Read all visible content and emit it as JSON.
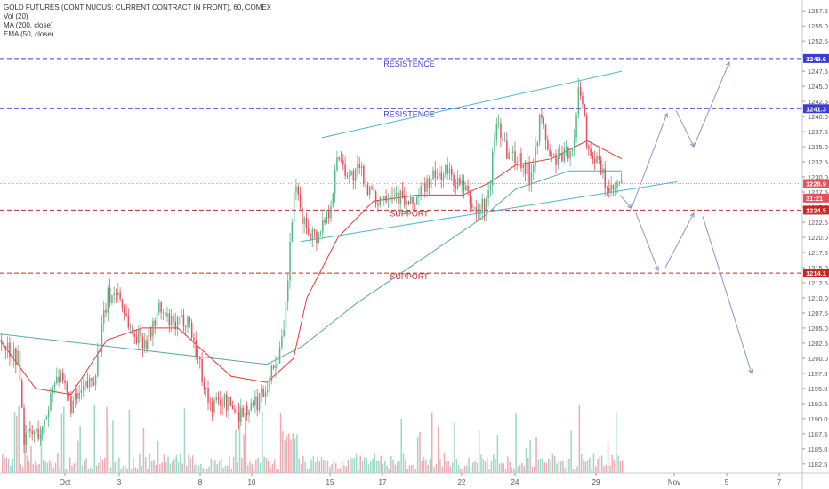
{
  "legend": {
    "title": "GOLD FUTURES (CONTINUOUS: CURRENT CONTRACT IN FRONT), 60, COMEX",
    "vol": "Vol (20)",
    "ma": "MA (200, close)",
    "ema": "EMA (50, close)"
  },
  "colors": {
    "up": "#53b987",
    "down": "#eb4d5c",
    "ma": "#5aa7a8",
    "ema": "#e53935",
    "resistance": "#3b3bd6",
    "support": "#c62828",
    "channel": "#4cb6c6",
    "projection": "#8c95c6",
    "vol_up": "#9ed6c8",
    "vol_down": "#f2a9b0"
  },
  "chart_data": {
    "type": "candlestick",
    "title": "GOLD FUTURES (CONTINUOUS: CURRENT CONTRACT IN FRONT), 60, COMEX",
    "ylim": [
      1181,
      1259
    ],
    "y_ticks": [
      "1257.5",
      "1255.0",
      "1252.5",
      "1250.0",
      "1247.5",
      "1245.0",
      "1242.5",
      "1240.0",
      "1237.5",
      "1235.0",
      "1232.5",
      "1230.0",
      "1227.5",
      "1225.0",
      "1222.5",
      "1220.0",
      "1217.5",
      "1215.0",
      "1212.5",
      "1210.0",
      "1207.5",
      "1205.0",
      "1202.5",
      "1200.0",
      "1197.5",
      "1195.0",
      "1192.5",
      "1190.0",
      "1187.5",
      "1185.0",
      "1182.5"
    ],
    "x_ticks": [
      "Oct",
      "3",
      "8",
      "10",
      "15",
      "17",
      "22",
      "24",
      "29",
      "Nov",
      "5",
      "7"
    ],
    "price_tags": [
      {
        "value": 1249.6,
        "label": "1249.6",
        "color": "#3b3bd6"
      },
      {
        "value": 1241.3,
        "label": "1241.3",
        "color": "#3b3bd6"
      },
      {
        "value": 1228.9,
        "label": "1228.9",
        "color": "#eb4d5c"
      },
      {
        "value": 1226.5,
        "label": "31:21",
        "color": "#eb4d5c"
      },
      {
        "value": 1224.5,
        "label": "1224.5",
        "color": "#c62828"
      },
      {
        "value": 1214.1,
        "label": "1214.1",
        "color": "#c62828"
      }
    ],
    "horizontal_levels": [
      {
        "value": 1249.6,
        "label": "RESISTENCE",
        "kind": "resistance"
      },
      {
        "value": 1241.3,
        "label": "RESISTENCE",
        "kind": "resistance"
      },
      {
        "value": 1224.5,
        "label": "SUPPORT",
        "kind": "support"
      },
      {
        "value": 1214.1,
        "label": "SUPPORT",
        "kind": "support"
      }
    ],
    "price_path": [
      {
        "x": 0,
        "v": 1203
      },
      {
        "x": 20,
        "v": 1200
      },
      {
        "x": 26,
        "v": 1187
      },
      {
        "x": 48,
        "v": 1188
      },
      {
        "x": 62,
        "v": 1198
      },
      {
        "x": 80,
        "v": 1192
      },
      {
        "x": 105,
        "v": 1197
      },
      {
        "x": 120,
        "v": 1210
      },
      {
        "x": 132,
        "v": 1211
      },
      {
        "x": 148,
        "v": 1204
      },
      {
        "x": 165,
        "v": 1203
      },
      {
        "x": 178,
        "v": 1208
      },
      {
        "x": 195,
        "v": 1205
      },
      {
        "x": 210,
        "v": 1207
      },
      {
        "x": 222,
        "v": 1200
      },
      {
        "x": 235,
        "v": 1192
      },
      {
        "x": 250,
        "v": 1193
      },
      {
        "x": 268,
        "v": 1191
      },
      {
        "x": 285,
        "v": 1192
      },
      {
        "x": 300,
        "v": 1196
      },
      {
        "x": 318,
        "v": 1203
      },
      {
        "x": 330,
        "v": 1228
      },
      {
        "x": 342,
        "v": 1222
      },
      {
        "x": 355,
        "v": 1220
      },
      {
        "x": 370,
        "v": 1225
      },
      {
        "x": 380,
        "v": 1234
      },
      {
        "x": 392,
        "v": 1230
      },
      {
        "x": 405,
        "v": 1231
      },
      {
        "x": 420,
        "v": 1226
      },
      {
        "x": 440,
        "v": 1228
      },
      {
        "x": 460,
        "v": 1225
      },
      {
        "x": 480,
        "v": 1229
      },
      {
        "x": 500,
        "v": 1231
      },
      {
        "x": 520,
        "v": 1228
      },
      {
        "x": 535,
        "v": 1224
      },
      {
        "x": 548,
        "v": 1226
      },
      {
        "x": 558,
        "v": 1240
      },
      {
        "x": 570,
        "v": 1234
      },
      {
        "x": 585,
        "v": 1233
      },
      {
        "x": 595,
        "v": 1230
      },
      {
        "x": 607,
        "v": 1240
      },
      {
        "x": 618,
        "v": 1233
      },
      {
        "x": 632,
        "v": 1233
      },
      {
        "x": 645,
        "v": 1236
      },
      {
        "x": 651,
        "v": 1246
      },
      {
        "x": 660,
        "v": 1235
      },
      {
        "x": 672,
        "v": 1232
      },
      {
        "x": 685,
        "v": 1227
      },
      {
        "x": 699,
        "v": 1229
      }
    ],
    "ema50_path": [
      {
        "x": 0,
        "v": 1203
      },
      {
        "x": 40,
        "v": 1195
      },
      {
        "x": 80,
        "v": 1194
      },
      {
        "x": 120,
        "v": 1203
      },
      {
        "x": 160,
        "v": 1205
      },
      {
        "x": 200,
        "v": 1205
      },
      {
        "x": 230,
        "v": 1201
      },
      {
        "x": 260,
        "v": 1197
      },
      {
        "x": 300,
        "v": 1196
      },
      {
        "x": 330,
        "v": 1200
      },
      {
        "x": 345,
        "v": 1210
      },
      {
        "x": 380,
        "v": 1220
      },
      {
        "x": 420,
        "v": 1226
      },
      {
        "x": 470,
        "v": 1227
      },
      {
        "x": 520,
        "v": 1227
      },
      {
        "x": 550,
        "v": 1229
      },
      {
        "x": 580,
        "v": 1232
      },
      {
        "x": 620,
        "v": 1233
      },
      {
        "x": 660,
        "v": 1236
      },
      {
        "x": 699,
        "v": 1233
      }
    ],
    "ma200_path": [
      {
        "x": 0,
        "v": 1204
      },
      {
        "x": 60,
        "v": 1203
      },
      {
        "x": 120,
        "v": 1202
      },
      {
        "x": 180,
        "v": 1201
      },
      {
        "x": 240,
        "v": 1200
      },
      {
        "x": 300,
        "v": 1199
      },
      {
        "x": 340,
        "v": 1202
      },
      {
        "x": 400,
        "v": 1209
      },
      {
        "x": 450,
        "v": 1214
      },
      {
        "x": 500,
        "v": 1219
      },
      {
        "x": 540,
        "v": 1223
      },
      {
        "x": 580,
        "v": 1228
      },
      {
        "x": 640,
        "v": 1231
      },
      {
        "x": 699,
        "v": 1231
      }
    ],
    "channel_lines": [
      {
        "x1": 362,
        "v1": 1236.5,
        "x2": 699,
        "v2": 1247.5
      },
      {
        "x1": 338,
        "v1": 1219.3,
        "x2": 761,
        "v2": 1229.2
      }
    ],
    "projection_path": [
      {
        "x": 697,
        "v": 1227.0
      },
      {
        "x": 710,
        "v": 1224.8
      },
      {
        "x": 750,
        "v": 1240.5
      },
      {
        "x": 760,
        "v": 1241.0
      },
      {
        "x": 780,
        "v": 1235.0
      },
      {
        "x": 820,
        "v": 1249.0
      }
    ],
    "projection_path_2": [
      {
        "x": 715,
        "v": 1224.0
      },
      {
        "x": 740,
        "v": 1214.5
      },
      {
        "x": 748,
        "v": 1215.0
      },
      {
        "x": 780,
        "v": 1224.0
      },
      {
        "x": 790,
        "v": 1223.5
      },
      {
        "x": 845,
        "v": 1197.5
      }
    ]
  }
}
